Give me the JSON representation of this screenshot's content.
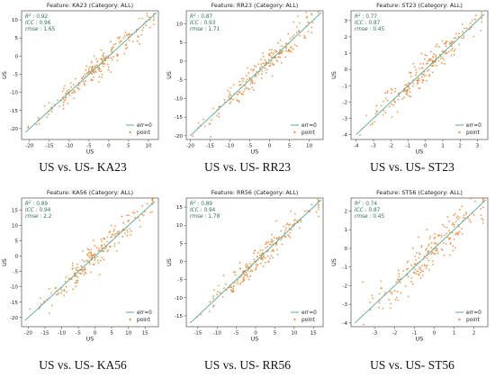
{
  "colors": {
    "line": "#5aa89a",
    "point": "#e8883a",
    "stat": "#2e6f5c"
  },
  "chart_data": [
    {
      "type": "scatter",
      "title": "Feature: KA23 (Category: ALL)",
      "caption": "US vs. US- KA23",
      "xlabel": "US",
      "ylabel": "US",
      "xlim": [
        -22,
        12.5
      ],
      "ylim": [
        -23,
        12.5
      ],
      "xticks": [
        -20,
        -15,
        -10,
        -5,
        0,
        5,
        10
      ],
      "yticks": [
        -20,
        -15,
        -10,
        -5,
        0,
        5,
        10
      ],
      "stats": {
        "r2": "0.92",
        "icc": "0.96",
        "rmse": "1.65"
      },
      "legend": [
        "err=0",
        "point"
      ],
      "n_points": 210,
      "spread": 1.6,
      "series": [
        {
          "name": "err=0",
          "kind": "line",
          "x": [
            -21,
            12
          ],
          "y": [
            -21,
            12
          ]
        }
      ]
    },
    {
      "type": "scatter",
      "title": "Feature: RR23 (Category: ALL)",
      "caption": "US vs. US- RR23",
      "xlabel": "US",
      "ylabel": "US",
      "xlim": [
        -21,
        13.5
      ],
      "ylim": [
        -21,
        13.5
      ],
      "xticks": [
        -20,
        -15,
        -10,
        -5,
        0,
        5,
        10
      ],
      "yticks": [
        -20,
        -15,
        -10,
        -5,
        0,
        5,
        10
      ],
      "stats": {
        "r2": "0.87",
        "icc": "0.93",
        "rmse": "1.71"
      },
      "legend": [
        "err=0",
        "point"
      ],
      "n_points": 210,
      "spread": 1.8,
      "series": [
        {
          "name": "err=0",
          "kind": "line",
          "x": [
            -20,
            13
          ],
          "y": [
            -20,
            13
          ]
        }
      ]
    },
    {
      "type": "scatter",
      "title": "Feature: ST23 (Category: ALL)",
      "caption": "US vs. US- ST23",
      "xlabel": "US",
      "ylabel": "US",
      "xlim": [
        -4.3,
        3.6
      ],
      "ylim": [
        -4.3,
        3.6
      ],
      "xticks": [
        -4,
        -3,
        -2,
        -1,
        0,
        1,
        2,
        3
      ],
      "yticks": [
        -4,
        -3,
        -2,
        -1,
        0,
        1,
        2,
        3
      ],
      "stats": {
        "r2": "0.77",
        "icc": "0.87",
        "rmse": "0.45"
      },
      "legend": [
        "err=0",
        "point"
      ],
      "n_points": 210,
      "spread": 0.45,
      "series": [
        {
          "name": "err=0",
          "kind": "line",
          "x": [
            -4,
            3.4
          ],
          "y": [
            -4,
            3.4
          ]
        }
      ]
    },
    {
      "type": "scatter",
      "title": "Feature: KA56 (Category: ALL)",
      "caption": "US vs. US- KA56",
      "xlabel": "US",
      "ylabel": "US",
      "xlim": [
        -22,
        19
      ],
      "ylim": [
        -23,
        19
      ],
      "xticks": [
        -20,
        -15,
        -10,
        -5,
        0,
        5,
        10,
        15
      ],
      "yticks": [
        -20,
        -15,
        -10,
        -5,
        0,
        5,
        10,
        15
      ],
      "stats": {
        "r2": "0.89",
        "icc": "0.94",
        "rmse": "2.2"
      },
      "legend": [
        "err=0",
        "point"
      ],
      "n_points": 210,
      "spread": 2.2,
      "series": [
        {
          "name": "err=0",
          "kind": "line",
          "x": [
            -21,
            18
          ],
          "y": [
            -21,
            18
          ]
        }
      ]
    },
    {
      "type": "scatter",
      "title": "Feature: RR56 (Category: ALL)",
      "caption": "US vs. US- RR56",
      "xlabel": "US",
      "ylabel": "US",
      "xlim": [
        -18,
        17.5
      ],
      "ylim": [
        -18,
        17.5
      ],
      "xticks": [
        -15,
        -10,
        -5,
        0,
        5,
        10,
        15
      ],
      "yticks": [
        -15,
        -10,
        -5,
        0,
        5,
        10,
        15
      ],
      "stats": {
        "r2": "0.89",
        "icc": "0.94",
        "rmse": "1.78"
      },
      "legend": [
        "err=0",
        "point"
      ],
      "n_points": 210,
      "spread": 1.8,
      "series": [
        {
          "name": "err=0",
          "kind": "line",
          "x": [
            -17,
            17
          ],
          "y": [
            -17,
            17
          ]
        }
      ]
    },
    {
      "type": "scatter",
      "title": "Feature: ST56 (Category: ALL)",
      "caption": "US vs. US- ST56",
      "xlabel": "US",
      "ylabel": "US",
      "xlim": [
        -4.2,
        2.7
      ],
      "ylim": [
        -4.2,
        2.7
      ],
      "xticks": [
        -3,
        -2,
        -1,
        0,
        1,
        2
      ],
      "yticks": [
        -4,
        -3,
        -2,
        -1,
        0,
        1,
        2
      ],
      "stats": {
        "r2": "0.74",
        "icc": "0.87",
        "rmse": "0.45"
      },
      "legend": [
        "err=0",
        "point"
      ],
      "n_points": 210,
      "spread": 0.5,
      "series": [
        {
          "name": "err=0",
          "kind": "line",
          "x": [
            -4,
            2.6
          ],
          "y": [
            -4,
            2.6
          ]
        }
      ]
    }
  ]
}
